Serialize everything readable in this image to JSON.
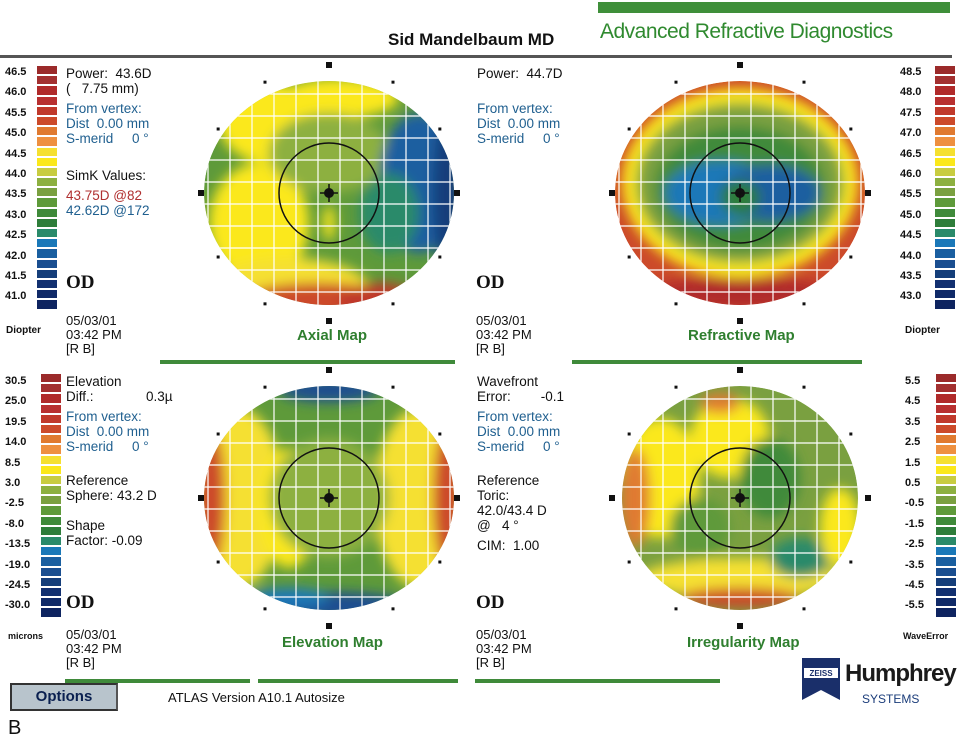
{
  "header": {
    "doctor": "Sid Mandelbaum MD",
    "brand": "Advanced Refractive Diagnostics"
  },
  "scale_colors": [
    "#9b2a2a",
    "#a33030",
    "#b02a2a",
    "#b83030",
    "#c0392b",
    "#cc4a2a",
    "#e07a30",
    "#ee9040",
    "#f5e030",
    "#fbe81a",
    "#c8cc40",
    "#8db040",
    "#7aa040",
    "#5e9a3a",
    "#3f8a3a",
    "#2e7d3a",
    "#2a8a6a",
    "#1a78b8",
    "#1a5fa0",
    "#1a4e90",
    "#153e7a",
    "#123070",
    "#102a68",
    "#0e2460"
  ],
  "scales": {
    "axial": {
      "labels": [
        "46.5",
        "46.0",
        "45.5",
        "45.0",
        "44.5",
        "44.0",
        "43.5",
        "43.0",
        "42.5",
        "42.0",
        "41.5",
        "41.0"
      ],
      "unit": "Diopter"
    },
    "refractive": {
      "labels": [
        "48.5",
        "48.0",
        "47.5",
        "47.0",
        "46.5",
        "46.0",
        "45.5",
        "45.0",
        "44.5",
        "44.0",
        "43.5",
        "43.0"
      ],
      "unit": "Diopter"
    },
    "elevation": {
      "labels": [
        "30.5",
        "25.0",
        "19.5",
        "14.0",
        "8.5",
        "3.0",
        "-2.5",
        "-8.0",
        "-13.5",
        "-19.0",
        "-24.5",
        "-30.0"
      ],
      "unit": "microns"
    },
    "irregularity": {
      "labels": [
        "5.5",
        "4.5",
        "3.5",
        "2.5",
        "1.5",
        "0.5",
        "-0.5",
        "-1.5",
        "-2.5",
        "-3.5",
        "-4.5",
        "-5.5"
      ],
      "unit": "WaveError"
    }
  },
  "panels": {
    "axial": {
      "power": "Power:  43.6D",
      "radius": "(   7.75 mm)",
      "from_vertex": "From vertex:",
      "dist": "Dist  0.00 mm",
      "smerid": "S-merid     0 °",
      "simk_title": "SimK Values:",
      "simk_steep": "43.75D @82",
      "simk_flat": "42.62D @172",
      "eye": "OD",
      "date": "05/03/01",
      "time": "03:42 PM",
      "operator": "[R B]",
      "title": "Axial Map"
    },
    "refractive": {
      "power": "Power:  44.7D",
      "from_vertex": "From vertex:",
      "dist": "Dist  0.00 mm",
      "smerid": "S-merid     0 °",
      "eye": "OD",
      "date": "05/03/01",
      "time": "03:42 PM",
      "operator": "[R B]",
      "title": "Refractive Map"
    },
    "elevation": {
      "line1": "Elevation",
      "line2": "Diff.:              0.3µ",
      "from_vertex": "From vertex:",
      "dist": "Dist  0.00 mm",
      "smerid": "S-merid     0 °",
      "ref1": "Reference",
      "ref2": "Sphere: 43.2 D",
      "shape1": "Shape",
      "shape2": "Factor: -0.09",
      "eye": "OD",
      "date": "05/03/01",
      "time": "03:42 PM",
      "operator": "[R B]",
      "title": "Elevation Map"
    },
    "irregularity": {
      "line1": "Wavefront",
      "line2": "Error:        -0.1",
      "from_vertex": "From vertex:",
      "dist": "Dist  0.00 mm",
      "smerid": "S-merid     0 °",
      "ref1": "Reference",
      "ref2": "Toric:",
      "ref3": "42.0/43.4 D",
      "ref4": "@   4 °",
      "cim": "CIM:  1.00",
      "eye": "OD",
      "date": "05/03/01",
      "time": "03:42 PM",
      "operator": "[R B]",
      "title": "Irregularity Map"
    }
  },
  "footer": {
    "options": "Options",
    "version": "ATLAS  Version A10.1  Autosize",
    "logo_small": "ZEISS",
    "logo_main": "Humphrey",
    "logo_sub": "SYSTEMS",
    "figure_label": "B"
  }
}
